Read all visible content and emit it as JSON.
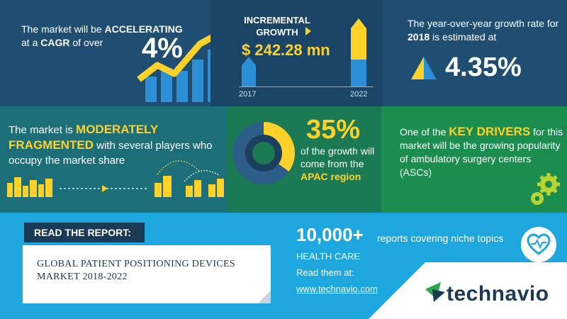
{
  "panel_cagr": {
    "pre": "The market will be ",
    "accel": "ACCELERATING",
    "mid": " at a ",
    "cagr": "CAGR",
    "post": " of over",
    "value": "4%"
  },
  "panel_incremental": {
    "label_line1": "INCREMENTAL",
    "label_line2": "GROWTH",
    "amount": "$ 242.28 mn",
    "year_start": "2017",
    "year_end": "2022"
  },
  "panel_yoy": {
    "pre": "The year-over-year growth rate for ",
    "year": "2018",
    "post": " is estimated at",
    "value": "4.35%"
  },
  "panel_fragmented": {
    "pre": "The market is ",
    "highlight1": "MODERATELY",
    "highlight2": "FRAGMENTED",
    "post": " with several players who occupy the market share"
  },
  "panel_apac": {
    "value": "35%",
    "pre": "of the growth will come from the ",
    "region": "APAC region",
    "share_fraction": 0.35
  },
  "panel_drivers": {
    "pre": "One of the ",
    "highlight": "KEY DRIVERS",
    "post": " for this market will be the growing popularity of ambulatory surgery centers (ASCs)"
  },
  "report": {
    "tab_label": "READ THE REPORT:",
    "title": "GLOBAL PATIENT POSITIONING DEVICES MARKET 2018-2022",
    "count": "10,000+",
    "count_desc": "reports covering niche topics",
    "category": "HEALTH CARE",
    "read_label": "Read them at:",
    "link": "www.technavio.com"
  },
  "brand": {
    "logo": "technavio",
    "colors": {
      "yellow": "#ffd229",
      "navy": "#1b3a55",
      "sky": "#1ea7df",
      "teal": "#1c6f78",
      "green": "#1b8d4f"
    }
  }
}
